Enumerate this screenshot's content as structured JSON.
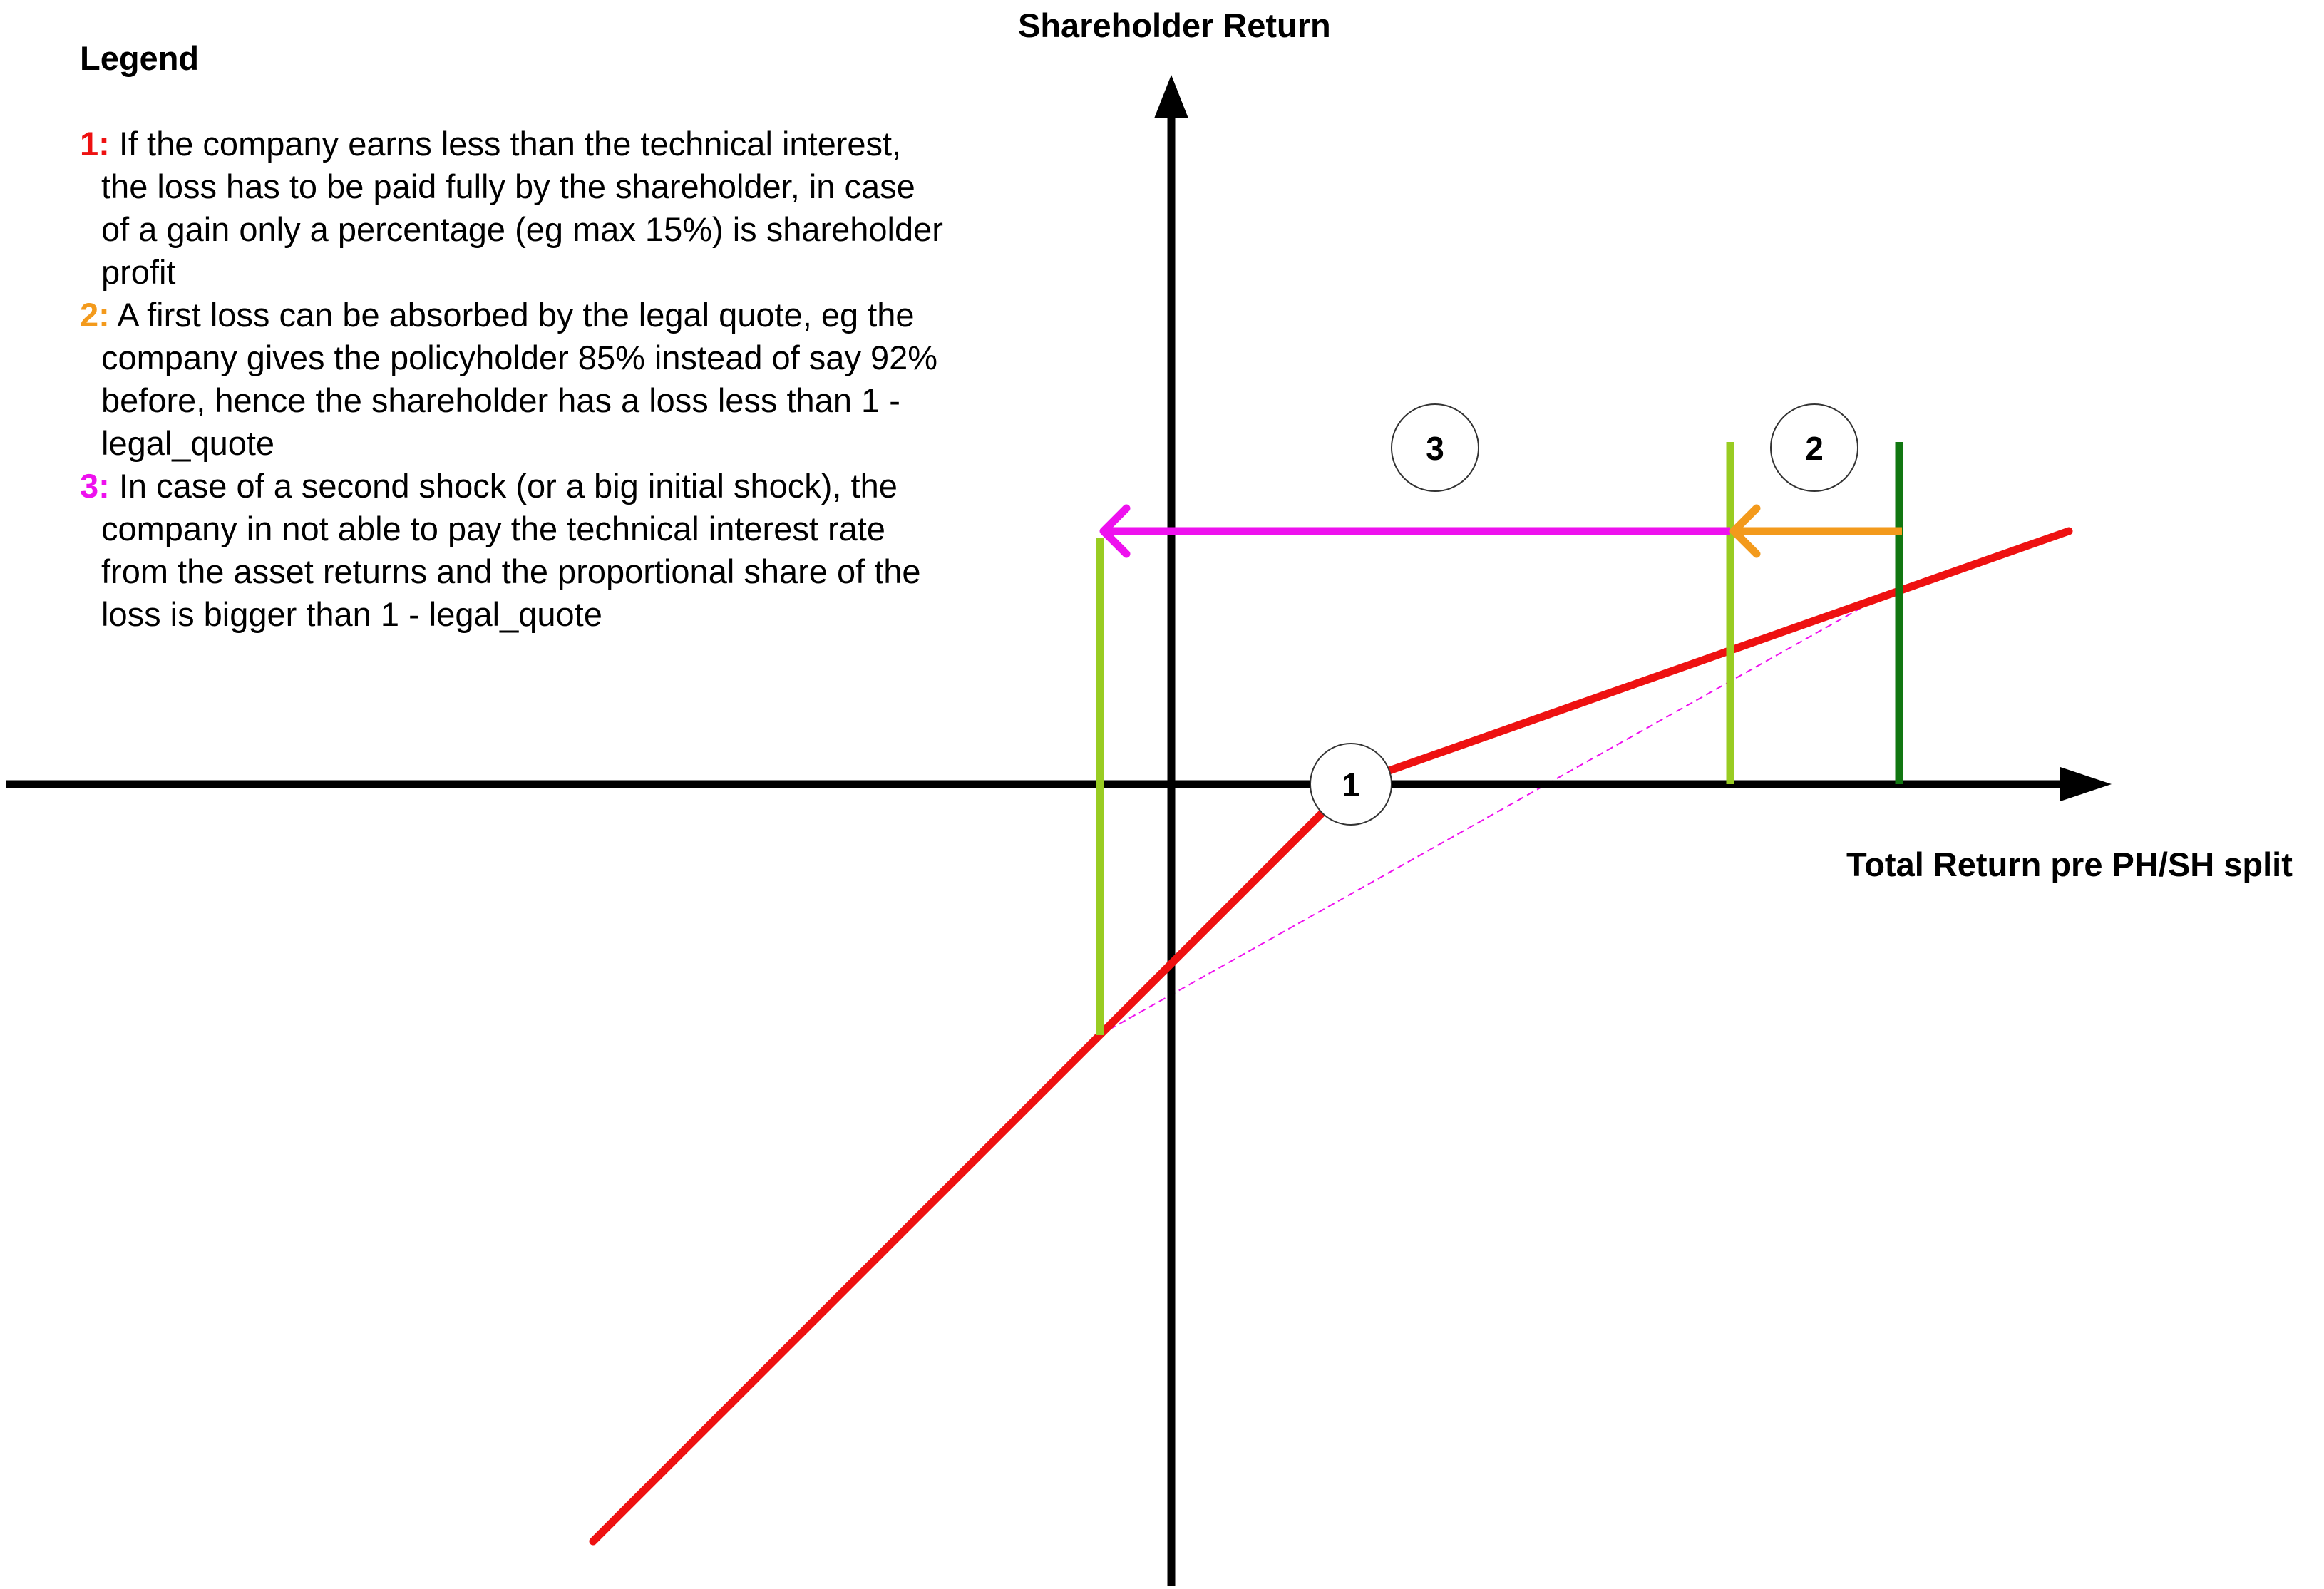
{
  "legend": {
    "title": "Legend",
    "items": [
      {
        "number": "1:",
        "color": "#ee1111",
        "text": "If the company earns less than the technical interest, the loss has to be paid fully by the shareholder, in case of a gain only a percentage (eg max 15%) is shareholder profit"
      },
      {
        "number": "2:",
        "color": "#f39a1c",
        "text": "A first loss can be absorbed by the legal quote, eg the company gives the policyholder 85% instead of say 92% before, hence the shareholder has a loss less than 1 - legal_quote"
      },
      {
        "number": "3:",
        "color": "#ee11ee",
        "text": "In case of a second shock (or a big initial shock), the company in not able to pay the technical interest rate from the asset returns and the proportional share of the loss is bigger than 1 - legal_quote"
      }
    ]
  },
  "axes": {
    "y_title": "Shareholder Return",
    "x_title": "Total Return pre PH/SH split"
  },
  "markers": {
    "m1": "1",
    "m2": "2",
    "m3": "3"
  },
  "colors": {
    "axis": "#000000",
    "payoff_line": "#ee1111",
    "legal_quote_arrow": "#f39a1c",
    "second_shock_arrow": "#ee11ee",
    "dotted_line": "#ee11ee",
    "light_green": "#99cc22",
    "dark_green": "#117711"
  }
}
